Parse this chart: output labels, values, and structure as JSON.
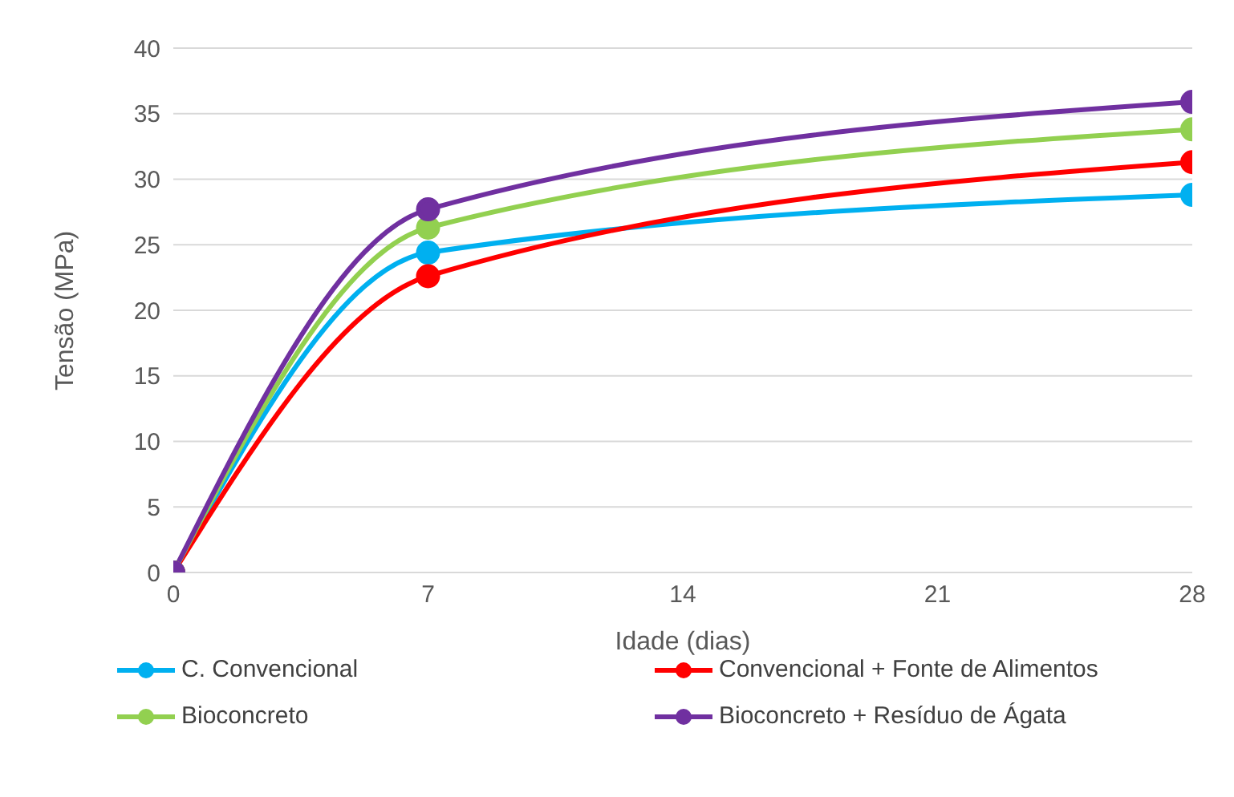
{
  "chart_data": {
    "type": "line",
    "xlabel": "Idade (dias)",
    "ylabel": "Tensão (MPa)",
    "x": [
      0,
      7,
      28
    ],
    "series": [
      {
        "name": "C. Convencional",
        "color": "#00b0f0",
        "values": [
          0,
          24.4,
          28.8
        ]
      },
      {
        "name": "Convencional + Fonte de Alimentos",
        "color": "#ff0000",
        "values": [
          0,
          22.6,
          31.3
        ]
      },
      {
        "name": "Bioconcreto",
        "color": "#92d050",
        "values": [
          0,
          26.3,
          33.8
        ]
      },
      {
        "name": "Bioconcreto + Resíduo de Ágata",
        "color": "#7030a0",
        "values": [
          0,
          27.7,
          35.9
        ]
      }
    ],
    "xlim": [
      0,
      28
    ],
    "xticks": [
      0,
      7,
      14,
      21,
      28
    ],
    "ylim": [
      0,
      40
    ],
    "yticks": [
      0,
      5,
      10,
      15,
      20,
      25,
      30,
      35,
      40
    ],
    "grid": "y",
    "legend": "bottom",
    "marker": "circle",
    "line_style": "solid"
  }
}
